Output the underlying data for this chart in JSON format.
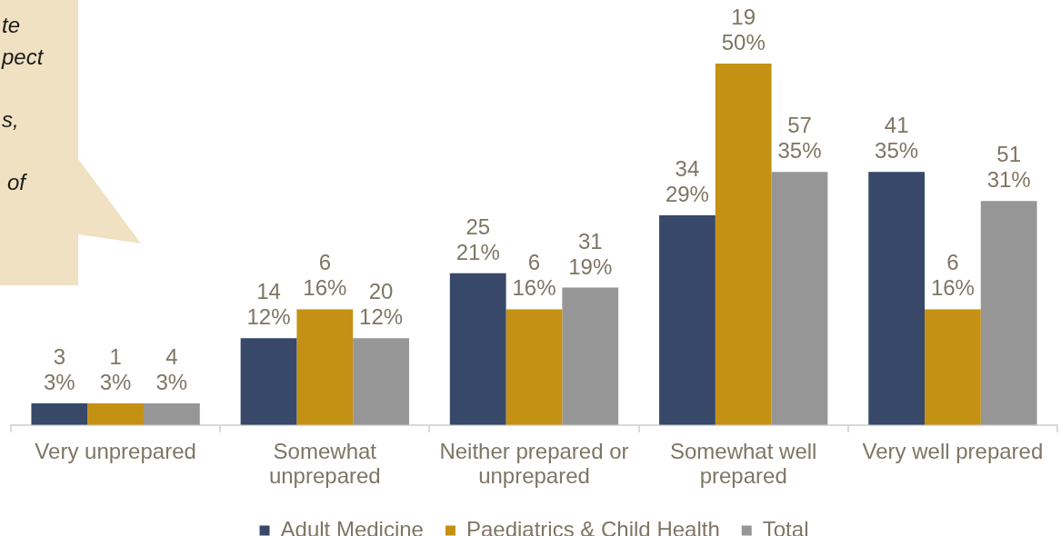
{
  "chart_data": {
    "type": "bar",
    "categories": [
      "Very unprepared",
      "Somewhat unprepared",
      "Neither prepared or unprepared",
      "Somewhat well prepared",
      "Very well prepared"
    ],
    "series": [
      {
        "name": "Adult Medicine",
        "color": "#374868",
        "values": [
          3,
          12,
          21,
          29,
          35
        ],
        "value_labels": [
          "3\n3%",
          "14\n12%",
          "25\n21%",
          "34\n29%",
          "41\n35%"
        ]
      },
      {
        "name": "Paediatrics & Child Health",
        "color": "#c49114",
        "values": [
          3,
          16,
          16,
          50,
          16
        ],
        "value_labels": [
          "1\n3%",
          "6\n16%",
          "6\n16%",
          "19\n50%",
          "6\n16%"
        ]
      },
      {
        "name": "Total",
        "color": "#959695",
        "values": [
          3,
          12,
          19,
          35,
          31
        ],
        "value_labels": [
          "4\n3%",
          "20\n12%",
          "31\n19%",
          "57\n35%",
          "51\n31%"
        ]
      }
    ],
    "grid": false,
    "legend": "bottom",
    "tick_labels": "x",
    "annotations": [
      "te",
      "pect",
      "s,",
      "of"
    ]
  }
}
